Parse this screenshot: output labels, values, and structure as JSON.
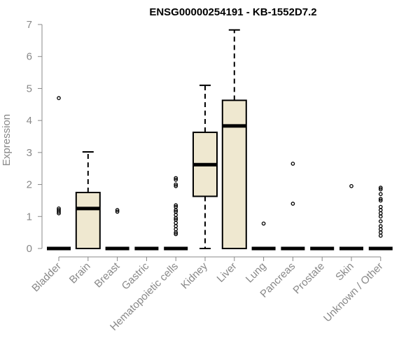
{
  "chart_data": {
    "type": "box",
    "title": "ENSG00000254191 - KB-1552D7.2",
    "ylabel": "Expression",
    "xlabel": "",
    "ylim": [
      0,
      7
    ],
    "yticks": [
      0,
      1,
      2,
      3,
      4,
      5,
      6,
      7
    ],
    "grid": false,
    "legend": "none",
    "colors": {
      "box_fill": "#efe8d0",
      "box_stroke": "#000000",
      "axis": "#888888"
    },
    "categories": [
      {
        "name": "Bladder",
        "q1": 0,
        "median": 0,
        "q3": 0,
        "whisker_low": 0,
        "whisker_high": 0,
        "outliers": [
          4.7,
          1.25,
          1.2,
          1.15,
          1.1
        ]
      },
      {
        "name": "Brain",
        "q1": 0,
        "median": 1.25,
        "q3": 1.75,
        "whisker_low": 0,
        "whisker_high": 3.02,
        "outliers": []
      },
      {
        "name": "Breast",
        "q1": 0,
        "median": 0,
        "q3": 0,
        "whisker_low": 0,
        "whisker_high": 0,
        "outliers": [
          1.2,
          1.15
        ]
      },
      {
        "name": "Gastric",
        "q1": 0,
        "median": 0,
        "q3": 0,
        "whisker_low": 0,
        "whisker_high": 0,
        "outliers": []
      },
      {
        "name": "Hematopoietic cells",
        "q1": 0,
        "median": 0,
        "q3": 0,
        "whisker_low": 0,
        "whisker_high": 0,
        "outliers": [
          2.2,
          2.15,
          2.0,
          1.95,
          1.35,
          1.3,
          1.2,
          1.15,
          1.05,
          0.95,
          0.9,
          0.8,
          0.7,
          0.6,
          0.5,
          0.45
        ]
      },
      {
        "name": "Kidney",
        "q1": 1.63,
        "median": 2.62,
        "q3": 3.63,
        "whisker_low": 0,
        "whisker_high": 5.1,
        "outliers": []
      },
      {
        "name": "Liver",
        "q1": 0,
        "median": 3.83,
        "q3": 4.63,
        "whisker_low": 0,
        "whisker_high": 6.83,
        "outliers": []
      },
      {
        "name": "Lung",
        "q1": 0,
        "median": 0,
        "q3": 0,
        "whisker_low": 0,
        "whisker_high": 0,
        "outliers": [
          0.78
        ]
      },
      {
        "name": "Pancreas",
        "q1": 0,
        "median": 0,
        "q3": 0,
        "whisker_low": 0,
        "whisker_high": 0,
        "outliers": [
          2.65,
          1.4
        ]
      },
      {
        "name": "Prostate",
        "q1": 0,
        "median": 0,
        "q3": 0,
        "whisker_low": 0,
        "whisker_high": 0,
        "outliers": []
      },
      {
        "name": "Skin",
        "q1": 0,
        "median": 0,
        "q3": 0,
        "whisker_low": 0,
        "whisker_high": 0,
        "outliers": [
          1.95
        ]
      },
      {
        "name": "Unknown / Other",
        "q1": 0,
        "median": 0,
        "q3": 0,
        "whisker_low": 0,
        "whisker_high": 0,
        "outliers": [
          1.9,
          1.85,
          1.7,
          1.55,
          1.5,
          1.3,
          1.2,
          1.1,
          1.0,
          0.85,
          0.7,
          0.6,
          0.5,
          0.4
        ]
      }
    ]
  }
}
